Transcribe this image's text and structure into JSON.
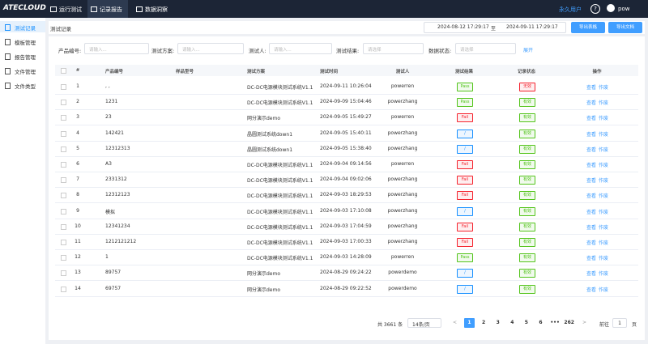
{
  "header": {
    "logo": "ATECLOUD",
    "tabs": [
      "运行测试",
      "记录报告",
      "数据洞察"
    ],
    "active_tab": 1,
    "user_type": "永久用户",
    "help": "?",
    "user": "pow"
  },
  "sidebar": {
    "items": [
      "测试记录",
      "模板管理",
      "报告管理",
      "文件管理",
      "文件类型"
    ],
    "active": 0
  },
  "breadcrumb": "测试记录",
  "date_range": {
    "start": "2024-08-12 17:29:17",
    "separator": "至",
    "end": "2024-09-11 17:29:17"
  },
  "buttons": [
    "导出表格",
    "导出文档"
  ],
  "filters": [
    {
      "label": "产品编号:",
      "placeholder": "请输入..."
    },
    {
      "label": "测试方案:",
      "placeholder": "请输入..."
    },
    {
      "label": "测试人:",
      "placeholder": "请输入..."
    },
    {
      "label": "测试结果:",
      "placeholder": "请选择"
    },
    {
      "label": "数据状态:",
      "placeholder": "请选择"
    }
  ],
  "expand": "展开",
  "table": {
    "columns": [
      "#",
      "产品编号",
      "样品型号",
      "测试方案",
      "测试时间",
      "测试人",
      "测试结果",
      "记录状态",
      "操作"
    ],
    "rows": [
      {
        "cells": [
          "1",
          ", ,",
          "DC-DC电源模块测试系统V1.1",
          "2024-09-11 10:26:04",
          "powerren"
        ],
        "result": "Pass",
        "result_color": "#52c41a",
        "status": "无效",
        "status_color": "#f5222d",
        "actions": [
          "查看",
          "作废"
        ]
      },
      {
        "cells": [
          "2",
          "1231",
          "DC-DC电源模块测试系统V1.1",
          "2024-09-09 15:04:46",
          "powerzhang"
        ],
        "result": "Pass",
        "result_color": "#52c41a",
        "status": "有效",
        "status_color": "#52c41a",
        "actions": [
          "查看",
          "作废"
        ]
      },
      {
        "cells": [
          "3",
          "23",
          "网分演示demo",
          "2024-09-05 15:49:27",
          "powerren"
        ],
        "result": "Fail",
        "result_color": "#f5222d",
        "status": "有效",
        "status_color": "#52c41a",
        "actions": [
          "查看",
          "作废"
        ]
      },
      {
        "cells": [
          "4",
          "142421",
          "晶圆测试系统down1",
          "2024-09-05 15:40:11",
          "powerzhang"
        ],
        "result": "/",
        "result_color": "#1890ff",
        "status": "有效",
        "status_color": "#52c41a",
        "actions": [
          "查看",
          "作废"
        ]
      },
      {
        "cells": [
          "5",
          "12312313",
          "晶圆测试系统down1",
          "2024-09-05 15:38:40",
          "powerzhang"
        ],
        "result": "/",
        "result_color": "#1890ff",
        "status": "有效",
        "status_color": "#52c41a",
        "actions": [
          "查看",
          "作废"
        ]
      },
      {
        "cells": [
          "6",
          "A3",
          "DC-DC电源模块测试系统V1.1",
          "2024-09-04 09:14:56",
          "powerren"
        ],
        "result": "Fail",
        "result_color": "#f5222d",
        "status": "有效",
        "status_color": "#52c41a",
        "actions": [
          "查看",
          "作废"
        ]
      },
      {
        "cells": [
          "7",
          "2331312",
          "DC-DC电源模块测试系统V1.1",
          "2024-09-04 09:02:06",
          "powerzhang"
        ],
        "result": "Fail",
        "result_color": "#f5222d",
        "status": "有效",
        "status_color": "#52c41a",
        "actions": [
          "查看",
          "作废"
        ]
      },
      {
        "cells": [
          "8",
          "12312123",
          "DC-DC电源模块测试系统V1.1",
          "2024-09-03 18:29:53",
          "powerzhang"
        ],
        "result": "Fail",
        "result_color": "#f5222d",
        "status": "有效",
        "status_color": "#52c41a",
        "actions": [
          "查看",
          "作废"
        ]
      },
      {
        "cells": [
          "9",
          "模拟",
          "DC-DC电源模块测试系统V1.1",
          "2024-09-03 17:10:08",
          "powerzhang"
        ],
        "result": "/",
        "result_color": "#1890ff",
        "status": "有效",
        "status_color": "#52c41a",
        "actions": [
          "查看",
          "作废"
        ]
      },
      {
        "cells": [
          "10",
          "12341234",
          "DC-DC电源模块测试系统V1.1",
          "2024-09-03 17:04:59",
          "powerzhang"
        ],
        "result": "Fail",
        "result_color": "#f5222d",
        "status": "有效",
        "status_color": "#52c41a",
        "actions": [
          "查看",
          "作废"
        ]
      },
      {
        "cells": [
          "11",
          "1212121212",
          "DC-DC电源模块测试系统V1.1",
          "2024-09-03 17:00:33",
          "powerzhang"
        ],
        "result": "Fail",
        "result_color": "#f5222d",
        "status": "有效",
        "status_color": "#52c41a",
        "actions": [
          "查看",
          "作废"
        ]
      },
      {
        "cells": [
          "12",
          "1",
          "DC-DC电源模块测试系统V1.1",
          "2024-09-03 14:28:09",
          "powerren"
        ],
        "result": "Pass",
        "result_color": "#52c41a",
        "status": "有效",
        "status_color": "#52c41a",
        "actions": [
          "查看",
          "作废"
        ]
      },
      {
        "cells": [
          "13",
          "89757",
          "网分演示demo",
          "2024-08-29 09:24:22",
          "powerdemo"
        ],
        "result": "/",
        "result_color": "#1890ff",
        "status": "有效",
        "status_color": "#52c41a",
        "actions": [
          "查看",
          "作废"
        ]
      },
      {
        "cells": [
          "14",
          "69757",
          "网分演示demo",
          "2024-08-29 09:22:52",
          "powerdemo"
        ],
        "result": "/",
        "result_color": "#1890ff",
        "status": "有效",
        "status_color": "#52c41a",
        "actions": [
          "查看",
          "作废"
        ]
      }
    ]
  },
  "pagination": {
    "total": "共 3661 条",
    "page_size": "14条/页",
    "prev": "<",
    "pages": [
      "1",
      "2",
      "3",
      "4",
      "5",
      "6",
      "•••",
      "262"
    ],
    "current": 0,
    "next": ">",
    "goto": "前往",
    "goto_value": "1",
    "page_unit": "页"
  }
}
